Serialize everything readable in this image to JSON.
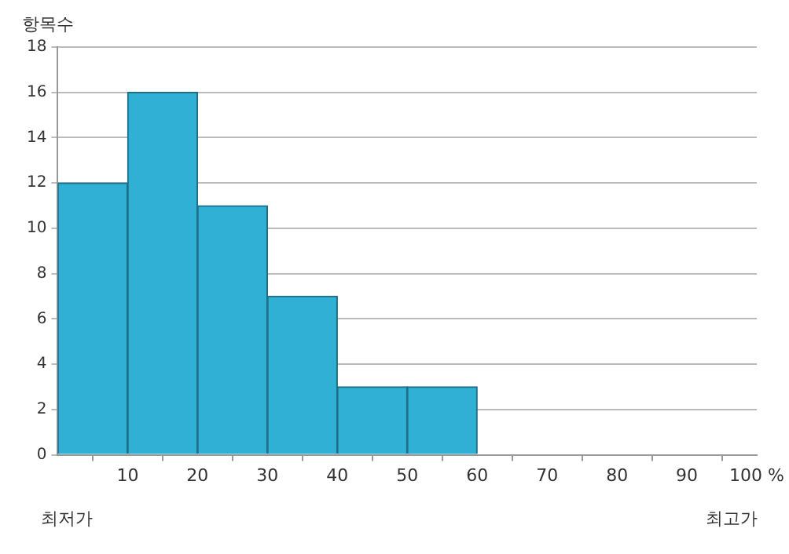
{
  "chart_data": {
    "type": "histogram",
    "ylabel": "항목수",
    "bins": [
      0,
      10,
      20,
      30,
      40,
      50,
      60
    ],
    "values": [
      12,
      16,
      11,
      7,
      3,
      3
    ],
    "color": "#31b0d5",
    "xlim": [
      0,
      100
    ],
    "xticks": [
      {
        "value": 0,
        "label": null
      },
      10,
      20,
      30,
      40,
      50,
      60,
      70,
      80,
      90,
      {
        "value": 100,
        "label": "100 %"
      }
    ],
    "ylim": [
      0,
      18
    ],
    "yticks": [
      0,
      2,
      4,
      6,
      8,
      10,
      12,
      14,
      16,
      18
    ],
    "grid": "y",
    "annotations": [
      "최저가",
      "최고가"
    ]
  }
}
